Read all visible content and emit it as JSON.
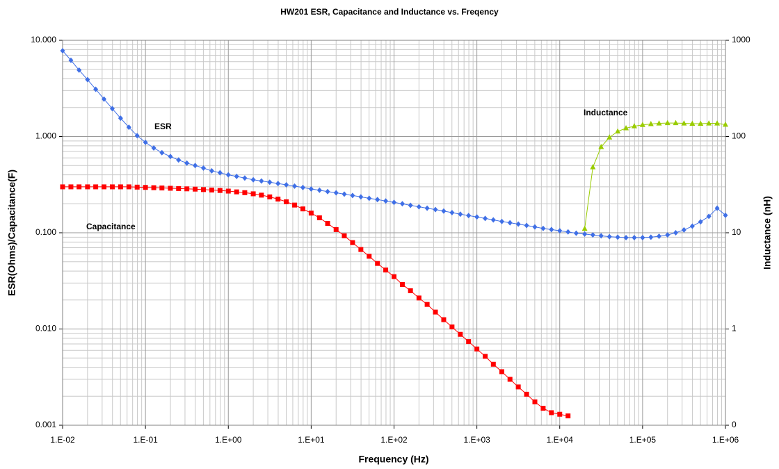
{
  "chart_data": {
    "type": "line",
    "title": "HW201 ESR, Capacitance and Inductance vs. Freqency",
    "x_label": "Frequency (Hz)",
    "y_label": "ESR(Ohms)/Capacitance(F)",
    "y2_label": "Inductance (nH)",
    "xscale": "log",
    "yscale": "log",
    "y2scale": "log",
    "grid": true,
    "minor_grid": true,
    "xlim": [
      0.01,
      1000000
    ],
    "xticks": [
      {
        "value": 0.01,
        "label": "1.E-02"
      },
      {
        "value": 0.1,
        "label": "1.E-01"
      },
      {
        "value": 1,
        "label": "1.E+00"
      },
      {
        "value": 10,
        "label": "1.E+01"
      },
      {
        "value": 100,
        "label": "1.E+02"
      },
      {
        "value": 1000,
        "label": "1.E+03"
      },
      {
        "value": 10000,
        "label": "1.E+04"
      },
      {
        "value": 100000,
        "label": "1.E+05"
      },
      {
        "value": 1000000,
        "label": "1.E+06"
      }
    ],
    "ylim": [
      0.001,
      10
    ],
    "yticks": [
      {
        "value": 0.001,
        "label": "0.001"
      },
      {
        "value": 0.01,
        "label": "0.010"
      },
      {
        "value": 0.1,
        "label": "0.100"
      },
      {
        "value": 1,
        "label": "1.000"
      },
      {
        "value": 10,
        "label": "10.000"
      }
    ],
    "y2lim": [
      0.1,
      1000
    ],
    "y2ticks": [
      {
        "value": 0.1,
        "label": "0"
      },
      1,
      10,
      100,
      1000
    ],
    "annotations": [
      {
        "text": "ESR"
      },
      {
        "text": "Capacitance"
      },
      {
        "text": "Inductance"
      }
    ],
    "x": [
      0.01,
      0.0126,
      0.0158,
      0.02,
      0.0251,
      0.0316,
      0.0398,
      0.0501,
      0.0631,
      0.0794,
      0.1,
      0.126,
      0.158,
      0.2,
      0.251,
      0.316,
      0.398,
      0.501,
      0.631,
      0.794,
      1,
      1.26,
      1.58,
      2,
      2.51,
      3.16,
      3.98,
      5.01,
      6.31,
      7.94,
      10,
      12.6,
      15.8,
      20,
      25.1,
      31.6,
      39.8,
      50.1,
      63.1,
      79.4,
      100,
      126,
      158,
      200,
      251,
      316,
      398,
      501,
      631,
      794,
      1000,
      1260,
      1580,
      2000,
      2510,
      3160,
      3980,
      5010,
      6310,
      7940,
      10000,
      12600,
      15800,
      20000,
      25100,
      31600,
      39800,
      50100,
      63100,
      79400,
      100000,
      126000,
      158000,
      200000,
      251000,
      316000,
      398000,
      501000,
      631000,
      794000,
      1000000
    ],
    "series": [
      {
        "name": "ESR",
        "color": "#3f6fe6",
        "marker": "diamond",
        "values": [
          7.8,
          6.2,
          4.9,
          3.9,
          3.1,
          2.45,
          1.95,
          1.55,
          1.25,
          1.02,
          0.87,
          0.76,
          0.68,
          0.62,
          0.57,
          0.53,
          0.5,
          0.47,
          0.44,
          0.42,
          0.4,
          0.385,
          0.37,
          0.355,
          0.345,
          0.335,
          0.325,
          0.315,
          0.305,
          0.295,
          0.285,
          0.277,
          0.268,
          0.26,
          0.252,
          0.244,
          0.236,
          0.228,
          0.221,
          0.214,
          0.207,
          0.2,
          0.193,
          0.186,
          0.18,
          0.174,
          0.168,
          0.162,
          0.156,
          0.151,
          0.146,
          0.141,
          0.136,
          0.131,
          0.127,
          0.123,
          0.119,
          0.115,
          0.111,
          0.108,
          0.105,
          0.102,
          0.099,
          0.097,
          0.095,
          0.093,
          0.091,
          0.09,
          0.089,
          0.089,
          0.089,
          0.09,
          0.092,
          0.095,
          0.1,
          0.107,
          0.117,
          0.13,
          0.148,
          0.18,
          0.152
        ]
      },
      {
        "name": "Capacitance",
        "color": "#ff0000",
        "marker": "square",
        "values": [
          0.3,
          0.3,
          0.3,
          0.3,
          0.3,
          0.3,
          0.3,
          0.3,
          0.3,
          0.298,
          0.296,
          0.294,
          0.292,
          0.29,
          0.288,
          0.286,
          0.284,
          0.281,
          0.278,
          0.275,
          0.271,
          0.266,
          0.261,
          0.254,
          0.246,
          0.236,
          0.224,
          0.21,
          0.194,
          0.177,
          0.16,
          0.143,
          0.125,
          0.108,
          0.093,
          0.079,
          0.067,
          0.057,
          0.048,
          0.041,
          0.035,
          0.029,
          0.025,
          0.021,
          0.018,
          0.015,
          0.0125,
          0.0105,
          0.0088,
          0.0074,
          0.0062,
          0.0052,
          0.0043,
          0.0036,
          0.003,
          0.0025,
          0.0021,
          0.00175,
          0.0015,
          0.00135,
          0.0013,
          0.00125,
          null,
          null,
          null,
          null,
          null,
          null,
          null,
          null,
          null,
          null,
          null,
          null,
          null,
          null,
          null,
          null,
          null,
          null,
          null
        ]
      },
      {
        "name": "Inductance",
        "color": "#99cc00",
        "marker": "triangle",
        "axis": "y2",
        "values": [
          null,
          null,
          null,
          null,
          null,
          null,
          null,
          null,
          null,
          null,
          null,
          null,
          null,
          null,
          null,
          null,
          null,
          null,
          null,
          null,
          null,
          null,
          null,
          null,
          null,
          null,
          null,
          null,
          null,
          null,
          null,
          null,
          null,
          null,
          null,
          null,
          null,
          null,
          null,
          null,
          null,
          null,
          null,
          null,
          null,
          null,
          null,
          null,
          null,
          null,
          null,
          null,
          null,
          null,
          null,
          null,
          null,
          null,
          null,
          null,
          null,
          null,
          null,
          11,
          48,
          78,
          98,
          113,
          122,
          128,
          132,
          135,
          137,
          138,
          138,
          137,
          136,
          136,
          137,
          137,
          133
        ]
      }
    ]
  }
}
